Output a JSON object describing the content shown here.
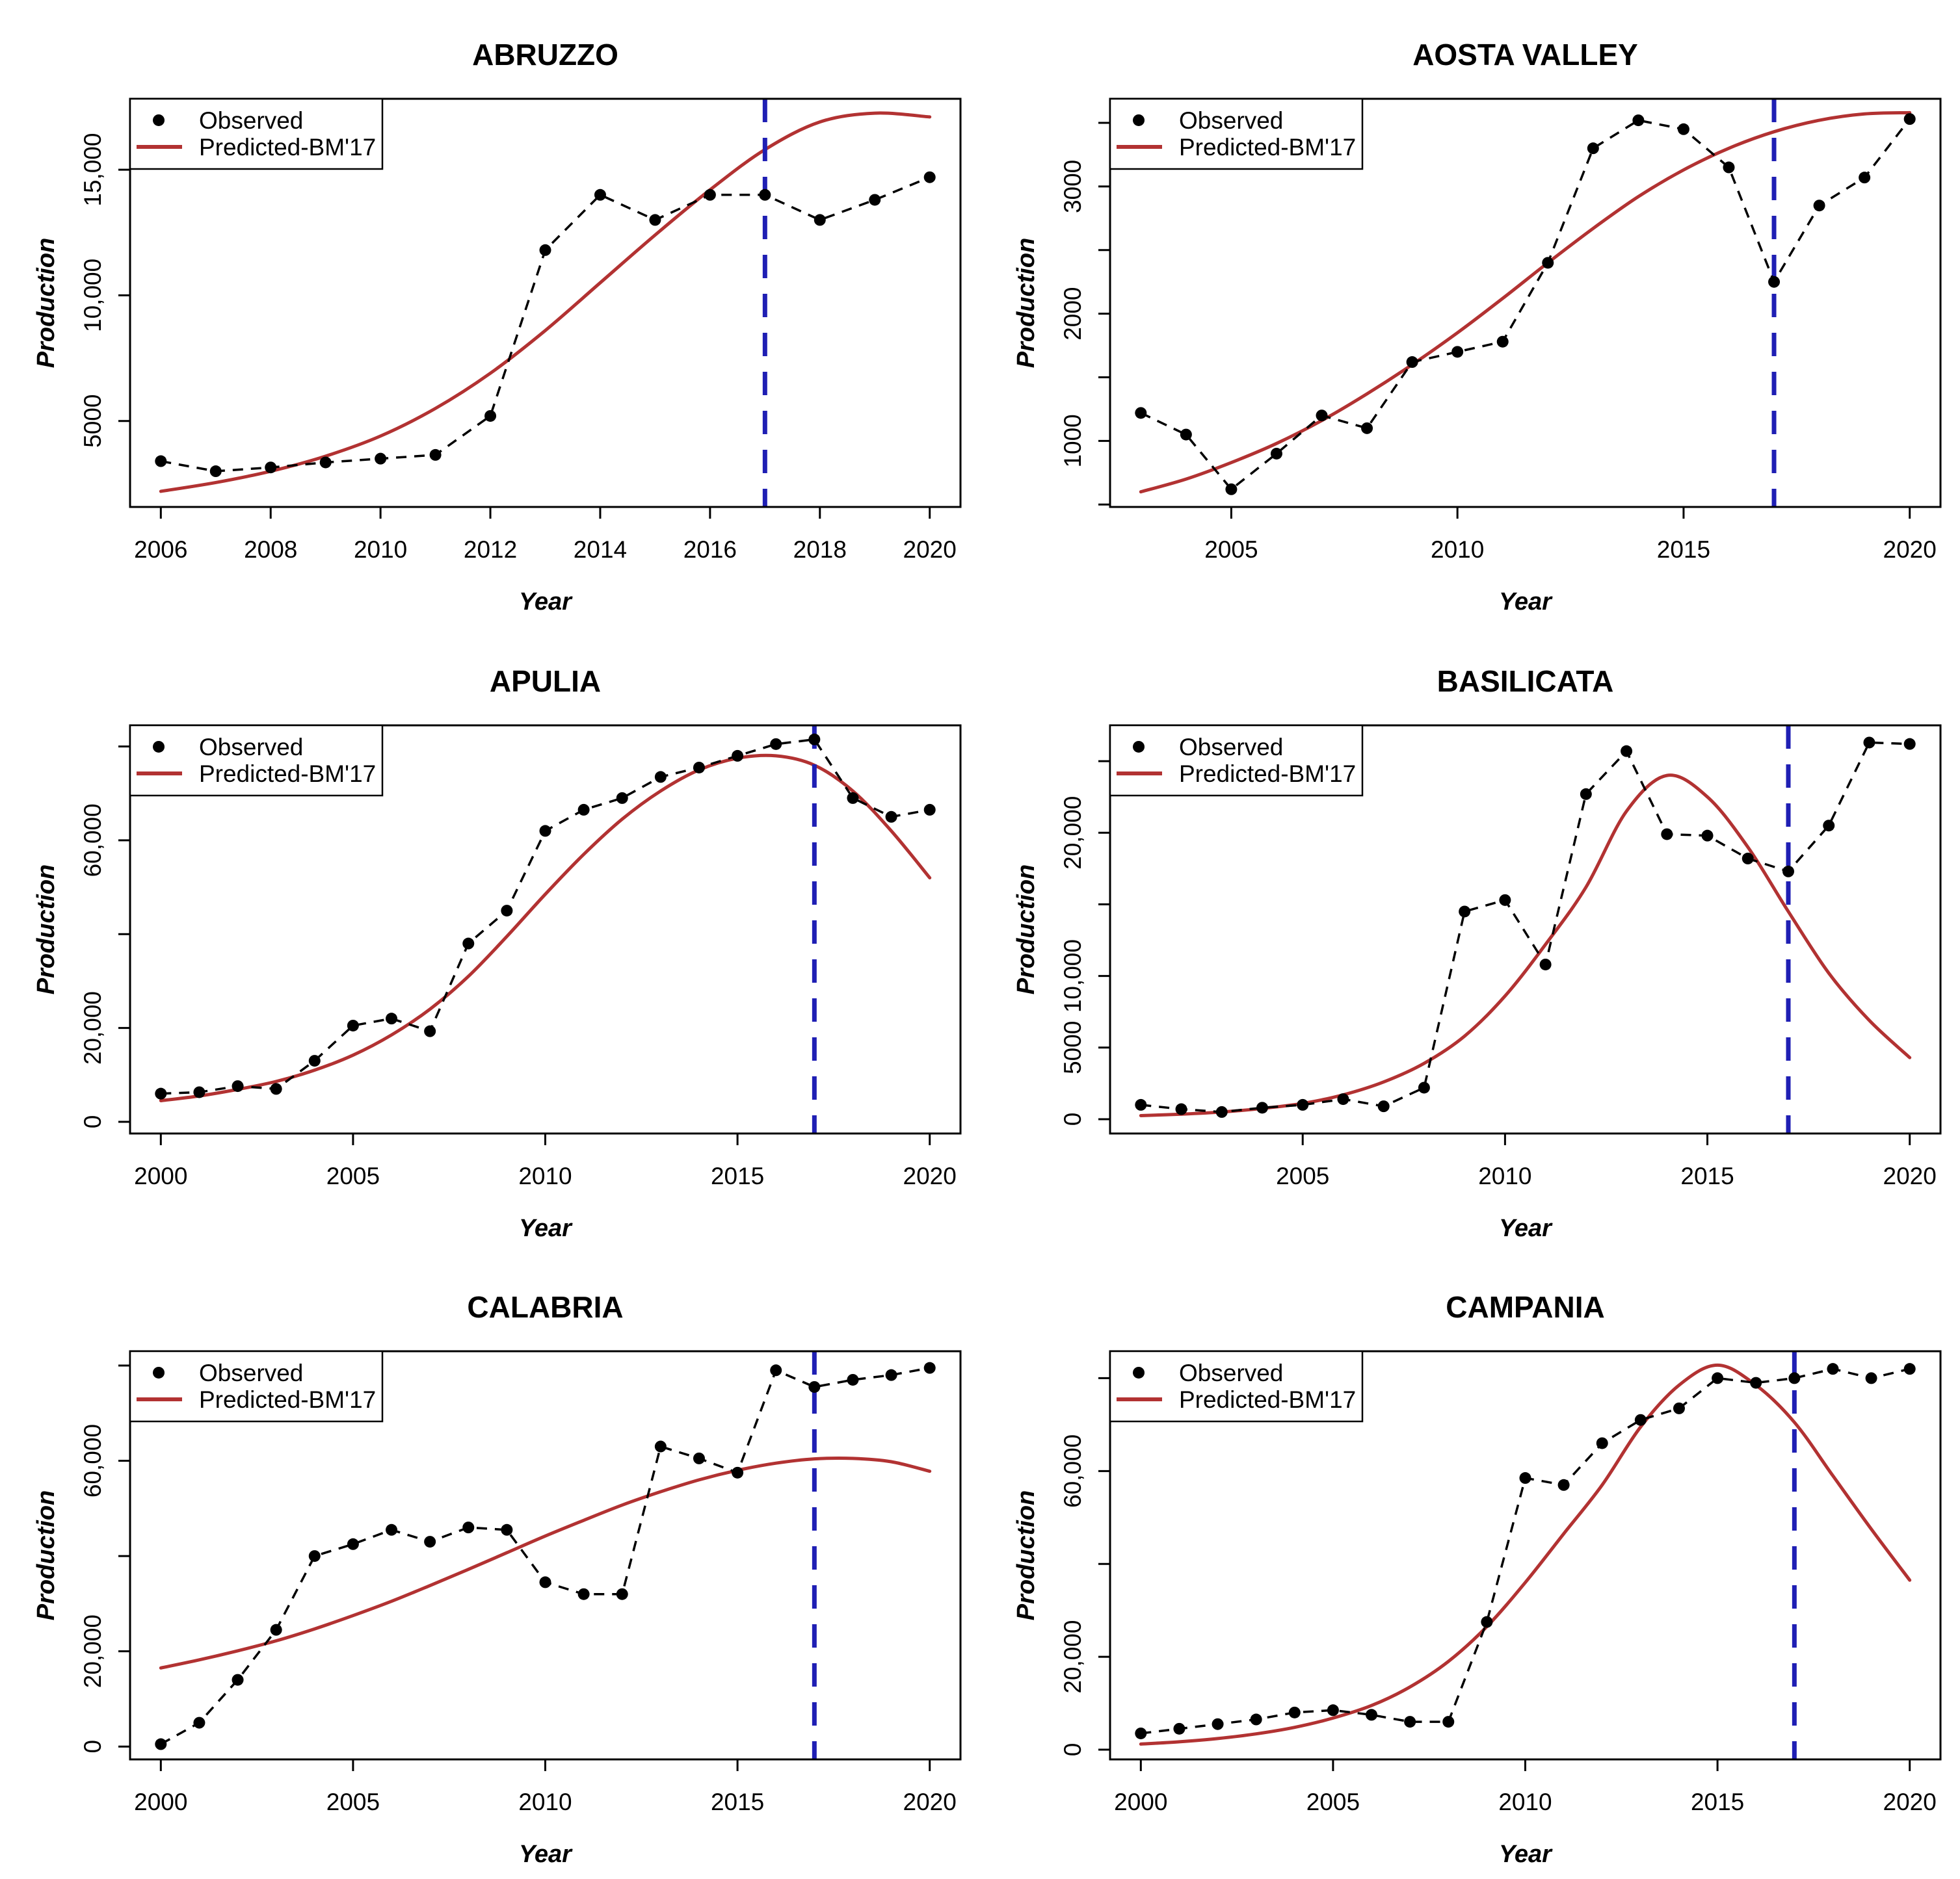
{
  "figure": {
    "background": "#ffffff",
    "columns": 2,
    "rows": 3
  },
  "colors": {
    "observed": "#000000",
    "predicted": "#b23232",
    "train_test_divider": "#1f1fb4",
    "axis": "#000000",
    "plot_background": "#ffffff"
  },
  "legend": {
    "position": "topleft",
    "items": [
      {
        "label": "Observed",
        "symbol": "point"
      },
      {
        "label": "Predicted-BM'17",
        "symbol": "line"
      }
    ]
  },
  "chart_data": [
    {
      "type": "line",
      "title": "ABRUZZO",
      "xlabel": "Year",
      "ylabel": "Production",
      "xlim": [
        2005.44,
        2020.56
      ],
      "ylim": [
        1578,
        17822
      ],
      "x_ticks": [
        {
          "v": 2006,
          "label": "2006"
        },
        {
          "v": 2008,
          "label": "2008"
        },
        {
          "v": 2010,
          "label": "2010"
        },
        {
          "v": 2012,
          "label": "2012"
        },
        {
          "v": 2014,
          "label": "2014"
        },
        {
          "v": 2016,
          "label": "2016"
        },
        {
          "v": 2018,
          "label": "2018"
        },
        {
          "v": 2020,
          "label": "2020"
        }
      ],
      "y_ticks": [
        {
          "v": 5000,
          "label": "5000"
        },
        {
          "v": 10000,
          "label": "10,000"
        },
        {
          "v": 15000,
          "label": "15,000"
        }
      ],
      "vline_x": 2017,
      "series": [
        {
          "name": "Observed",
          "role": "observed",
          "x": [
            2006,
            2007,
            2008,
            2009,
            2010,
            2011,
            2012,
            2013,
            2014,
            2015,
            2016,
            2017,
            2018,
            2019,
            2020
          ],
          "y": [
            3400,
            3000,
            3150,
            3350,
            3500,
            3650,
            5200,
            11800,
            14000,
            13000,
            14000,
            14000,
            13000,
            13800,
            14700
          ]
        },
        {
          "name": "Predicted-BM'17",
          "role": "predicted",
          "x": [
            2006,
            2007,
            2008,
            2009,
            2010,
            2011,
            2012,
            2013,
            2014,
            2015,
            2016,
            2017,
            2018,
            2019,
            2020
          ],
          "y": [
            2200,
            2550,
            3000,
            3600,
            4400,
            5500,
            6900,
            8600,
            10500,
            12400,
            14200,
            15800,
            16900,
            17250,
            17100
          ]
        }
      ]
    },
    {
      "type": "line",
      "title": "AOSTA VALLEY",
      "xlabel": "Year",
      "ylabel": "Production",
      "xlim": [
        2002.32,
        2020.68
      ],
      "ylim": [
        481,
        3689
      ],
      "x_ticks": [
        {
          "v": 2005,
          "label": "2005"
        },
        {
          "v": 2010,
          "label": "2010"
        },
        {
          "v": 2015,
          "label": "2015"
        },
        {
          "v": 2020,
          "label": "2020"
        }
      ],
      "y_ticks": [
        {
          "v": 500,
          "label": ""
        },
        {
          "v": 1000,
          "label": "1000"
        },
        {
          "v": 1500,
          "label": ""
        },
        {
          "v": 2000,
          "label": "2000"
        },
        {
          "v": 2500,
          "label": ""
        },
        {
          "v": 3000,
          "label": "3000"
        },
        {
          "v": 3500,
          "label": ""
        }
      ],
      "vline_x": 2017,
      "series": [
        {
          "name": "Observed",
          "role": "observed",
          "x": [
            2003,
            2004,
            2005,
            2006,
            2007,
            2008,
            2009,
            2010,
            2011,
            2012,
            2013,
            2014,
            2015,
            2016,
            2017,
            2018,
            2019,
            2020
          ],
          "y": [
            1220,
            1050,
            620,
            900,
            1200,
            1100,
            1620,
            1700,
            1780,
            2400,
            3300,
            3520,
            3450,
            3150,
            2250,
            2850,
            3070,
            3530
          ]
        },
        {
          "name": "Predicted-BM'17",
          "role": "predicted",
          "x": [
            2003,
            2004,
            2005,
            2006,
            2007,
            2008,
            2009,
            2010,
            2011,
            2012,
            2013,
            2014,
            2015,
            2016,
            2017,
            2018,
            2019,
            2020
          ],
          "y": [
            600,
            700,
            830,
            980,
            1160,
            1370,
            1600,
            1850,
            2120,
            2400,
            2670,
            2920,
            3130,
            3300,
            3430,
            3520,
            3570,
            3580
          ]
        }
      ]
    },
    {
      "type": "line",
      "title": "APULIA",
      "xlabel": "Year",
      "ylabel": "Production",
      "xlim": [
        1999.2,
        2020.8
      ],
      "ylim": [
        -2500,
        84500
      ],
      "x_ticks": [
        {
          "v": 2000,
          "label": "2000"
        },
        {
          "v": 2005,
          "label": "2005"
        },
        {
          "v": 2010,
          "label": "2010"
        },
        {
          "v": 2015,
          "label": "2015"
        },
        {
          "v": 2020,
          "label": "2020"
        }
      ],
      "y_ticks": [
        {
          "v": 0,
          "label": "0"
        },
        {
          "v": 20000,
          "label": "20,000"
        },
        {
          "v": 40000,
          "label": ""
        },
        {
          "v": 60000,
          "label": "60,000"
        },
        {
          "v": 80000,
          "label": ""
        }
      ],
      "vline_x": 2017,
      "series": [
        {
          "name": "Observed",
          "role": "observed",
          "x": [
            2000,
            2001,
            2002,
            2003,
            2004,
            2005,
            2006,
            2007,
            2008,
            2009,
            2010,
            2011,
            2012,
            2013,
            2014,
            2015,
            2016,
            2017,
            2018,
            2019,
            2020
          ],
          "y": [
            6000,
            6300,
            7600,
            7000,
            13000,
            20500,
            22000,
            19300,
            38000,
            45000,
            62000,
            66500,
            69000,
            73500,
            75500,
            78000,
            80500,
            81500,
            69000,
            65000,
            66500
          ]
        },
        {
          "name": "Predicted-BM'17",
          "role": "predicted",
          "x": [
            2000,
            2001,
            2002,
            2003,
            2004,
            2005,
            2006,
            2007,
            2008,
            2009,
            2010,
            2011,
            2012,
            2013,
            2014,
            2015,
            2016,
            2017,
            2018,
            2019,
            2020
          ],
          "y": [
            4500,
            5500,
            6900,
            8600,
            11000,
            14200,
            18500,
            24000,
            31000,
            39500,
            48500,
            57000,
            64500,
            70500,
            75000,
            77500,
            78000,
            76000,
            70500,
            62000,
            52000
          ]
        }
      ]
    },
    {
      "type": "line",
      "title": "BASILICATA",
      "xlabel": "Year",
      "ylabel": "Production",
      "xlim": [
        2000.24,
        2020.76
      ],
      "ylim": [
        -1000,
        27500
      ],
      "x_ticks": [
        {
          "v": 2005,
          "label": "2005"
        },
        {
          "v": 2010,
          "label": "2010"
        },
        {
          "v": 2015,
          "label": "2015"
        },
        {
          "v": 2020,
          "label": "2020"
        }
      ],
      "y_ticks": [
        {
          "v": 0,
          "label": "0"
        },
        {
          "v": 5000,
          "label": "5000"
        },
        {
          "v": 10000,
          "label": "10,000"
        },
        {
          "v": 15000,
          "label": ""
        },
        {
          "v": 20000,
          "label": "20,000"
        },
        {
          "v": 25000,
          "label": ""
        }
      ],
      "vline_x": 2017,
      "series": [
        {
          "name": "Observed",
          "role": "observed",
          "x": [
            2001,
            2002,
            2003,
            2004,
            2005,
            2006,
            2007,
            2008,
            2009,
            2010,
            2011,
            2012,
            2013,
            2014,
            2015,
            2016,
            2017,
            2018,
            2019,
            2020
          ],
          "y": [
            1000,
            700,
            500,
            800,
            1000,
            1400,
            900,
            2200,
            14500,
            15300,
            10800,
            22700,
            25700,
            19900,
            19800,
            18200,
            17300,
            20500,
            26300,
            26200
          ]
        },
        {
          "name": "Predicted-BM'17",
          "role": "predicted",
          "x": [
            2001,
            2002,
            2003,
            2004,
            2005,
            2006,
            2007,
            2008,
            2009,
            2010,
            2011,
            2012,
            2013,
            2014,
            2015,
            2016,
            2017,
            2018,
            2019,
            2020
          ],
          "y": [
            250,
            350,
            500,
            750,
            1100,
            1700,
            2600,
            3900,
            5800,
            8600,
            12200,
            16200,
            21500,
            24000,
            22500,
            19000,
            14500,
            10200,
            6900,
            4300
          ]
        }
      ]
    },
    {
      "type": "line",
      "title": "CALABRIA",
      "xlabel": "Year",
      "ylabel": "Production",
      "xlim": [
        1999.2,
        2020.8
      ],
      "ylim": [
        -2700,
        83000
      ],
      "x_ticks": [
        {
          "v": 2000,
          "label": "2000"
        },
        {
          "v": 2005,
          "label": "2005"
        },
        {
          "v": 2010,
          "label": "2010"
        },
        {
          "v": 2015,
          "label": "2015"
        },
        {
          "v": 2020,
          "label": "2020"
        }
      ],
      "y_ticks": [
        {
          "v": 0,
          "label": "0"
        },
        {
          "v": 20000,
          "label": "20,000"
        },
        {
          "v": 40000,
          "label": ""
        },
        {
          "v": 60000,
          "label": "60,000"
        },
        {
          "v": 80000,
          "label": ""
        }
      ],
      "vline_x": 2017,
      "series": [
        {
          "name": "Observed",
          "role": "observed",
          "x": [
            2000,
            2001,
            2002,
            2003,
            2004,
            2005,
            2006,
            2007,
            2008,
            2009,
            2010,
            2011,
            2012,
            2013,
            2014,
            2015,
            2016,
            2017,
            2018,
            2019,
            2020
          ],
          "y": [
            500,
            5000,
            14000,
            24500,
            40000,
            42500,
            45500,
            43000,
            46000,
            45500,
            34500,
            32000,
            32000,
            63000,
            60500,
            57500,
            79000,
            75500,
            77000,
            78000,
            79500
          ]
        },
        {
          "name": "Predicted-BM'17",
          "role": "predicted",
          "x": [
            2000,
            2001,
            2002,
            2003,
            2004,
            2005,
            2006,
            2007,
            2008,
            2009,
            2010,
            2011,
            2012,
            2013,
            2014,
            2015,
            2016,
            2017,
            2018,
            2019,
            2020
          ],
          "y": [
            16500,
            18200,
            20100,
            22200,
            24700,
            27500,
            30500,
            33800,
            37200,
            40700,
            44200,
            47500,
            50700,
            53500,
            56000,
            58000,
            59500,
            60400,
            60500,
            59800,
            57800
          ]
        }
      ]
    },
    {
      "type": "line",
      "title": "CAMPANIA",
      "xlabel": "Year",
      "ylabel": "Production",
      "xlim": [
        1999.2,
        2020.8
      ],
      "ylim": [
        -2100,
        85800
      ],
      "x_ticks": [
        {
          "v": 2000,
          "label": "2000"
        },
        {
          "v": 2005,
          "label": "2005"
        },
        {
          "v": 2010,
          "label": "2010"
        },
        {
          "v": 2015,
          "label": "2015"
        },
        {
          "v": 2020,
          "label": "2020"
        }
      ],
      "y_ticks": [
        {
          "v": 0,
          "label": "0"
        },
        {
          "v": 20000,
          "label": "20,000"
        },
        {
          "v": 40000,
          "label": ""
        },
        {
          "v": 60000,
          "label": "60,000"
        },
        {
          "v": 80000,
          "label": ""
        }
      ],
      "vline_x": 2017,
      "series": [
        {
          "name": "Observed",
          "role": "observed",
          "x": [
            2000,
            2001,
            2002,
            2003,
            2004,
            2005,
            2006,
            2007,
            2008,
            2009,
            2010,
            2011,
            2012,
            2013,
            2014,
            2015,
            2016,
            2017,
            2018,
            2019,
            2020
          ],
          "y": [
            3500,
            4500,
            5500,
            6500,
            8000,
            8500,
            7500,
            6000,
            6000,
            27500,
            58500,
            57000,
            66000,
            71000,
            73500,
            80000,
            79000,
            80000,
            82000,
            80000,
            82000
          ]
        },
        {
          "name": "Predicted-BM'17",
          "role": "predicted",
          "x": [
            2000,
            2001,
            2002,
            2003,
            2004,
            2005,
            2006,
            2007,
            2008,
            2009,
            2010,
            2011,
            2012,
            2013,
            2014,
            2015,
            2016,
            2017,
            2018,
            2019,
            2020
          ],
          "y": [
            1200,
            1700,
            2400,
            3400,
            4800,
            6800,
            9500,
            13500,
            19000,
            26500,
            36000,
            46500,
            57000,
            69500,
            78500,
            82800,
            78500,
            70500,
            59000,
            47500,
            36500
          ]
        }
      ]
    }
  ]
}
